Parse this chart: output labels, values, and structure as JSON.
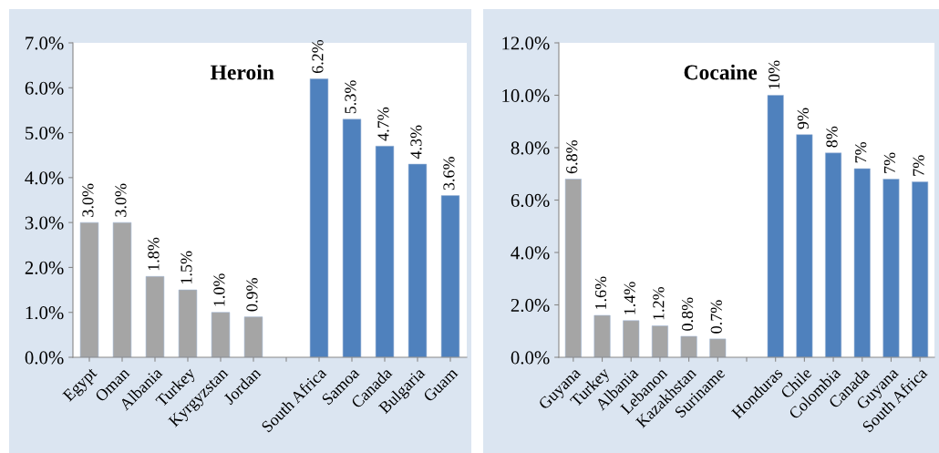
{
  "chart_data": [
    {
      "type": "bar",
      "title": "Heroin",
      "categories": [
        "Egypt",
        "Oman",
        "Albania",
        "Turkey",
        "Kyrgyzstan",
        "Jordan",
        null,
        "South Africa",
        "Samoa",
        "Canada",
        "Bulgaria",
        "Guam"
      ],
      "values": [
        3.0,
        3.0,
        1.8,
        1.5,
        1.0,
        0.9,
        null,
        6.2,
        5.3,
        4.7,
        4.3,
        3.6
      ],
      "value_labels": [
        "3.0%",
        "3.0%",
        "1.8%",
        "1.5%",
        "1.0%",
        "0.9%",
        null,
        "6.2%",
        "5.3%",
        "4.7%",
        "4.3%",
        "3.6%"
      ],
      "colors": [
        "#a5a5a5",
        "#a5a5a5",
        "#a5a5a5",
        "#a5a5a5",
        "#a5a5a5",
        "#a5a5a5",
        "#a5a5a5",
        "#4f81bd",
        "#4f81bd",
        "#4f81bd",
        "#4f81bd",
        "#4f81bd"
      ],
      "ylim": [
        0,
        7
      ],
      "yticks": [
        {
          "value": 0,
          "label": "0.0%"
        },
        {
          "value": 1,
          "label": "1.0%"
        },
        {
          "value": 2,
          "label": "2.0%"
        },
        {
          "value": 3,
          "label": "3.0%"
        },
        {
          "value": 4,
          "label": "4.0%"
        },
        {
          "value": 5,
          "label": "5.0%"
        },
        {
          "value": 6,
          "label": "6.0%"
        },
        {
          "value": 7,
          "label": "7.0%"
        }
      ]
    },
    {
      "type": "bar",
      "title": "Cocaine",
      "categories": [
        "Guyana",
        "Turkey",
        "Albania",
        "Lebanon",
        "Kazakhstan",
        "Suriname",
        null,
        "Honduras",
        "Chile",
        "Colombia",
        "Canada",
        "Guyana",
        "South Africa"
      ],
      "values": [
        6.8,
        1.6,
        1.4,
        1.2,
        0.8,
        0.7,
        null,
        10.0,
        8.5,
        7.8,
        7.2,
        6.8,
        6.7
      ],
      "value_labels": [
        "6.8%",
        "1.6%",
        "1.4%",
        "1.2%",
        "0.8%",
        "0.7%",
        null,
        "10%",
        "9%",
        "8%",
        "7%",
        "7%",
        "7%"
      ],
      "colors": [
        "#a5a5a5",
        "#a5a5a5",
        "#a5a5a5",
        "#a5a5a5",
        "#a5a5a5",
        "#a5a5a5",
        "#a5a5a5",
        "#4f81bd",
        "#4f81bd",
        "#4f81bd",
        "#4f81bd",
        "#4f81bd",
        "#4f81bd"
      ],
      "ylim": [
        0,
        12
      ],
      "yticks": [
        {
          "value": 0,
          "label": "0.0%"
        },
        {
          "value": 2,
          "label": "2.0%"
        },
        {
          "value": 4,
          "label": "4.0%"
        },
        {
          "value": 6,
          "label": "6.0%"
        },
        {
          "value": 8,
          "label": "8.0%"
        },
        {
          "value": 10,
          "label": "10.0%"
        },
        {
          "value": 12,
          "label": "12.0%"
        }
      ]
    }
  ]
}
